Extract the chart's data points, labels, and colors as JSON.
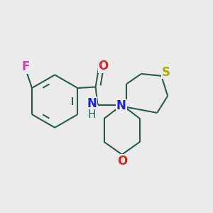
{
  "background_color": "#ebebeb",
  "bond_color": "#2d5a4a",
  "bond_width": 1.5,
  "atoms": {
    "F": {
      "color": "#cc44aa",
      "fontsize": 11
    },
    "O_carbonyl": {
      "color": "#dd2222",
      "fontsize": 11
    },
    "NH": {
      "color": "#2222cc",
      "fontsize": 11
    },
    "H_nh": {
      "color": "#2d6060",
      "fontsize": 10
    },
    "N": {
      "color": "#2222cc",
      "fontsize": 11
    },
    "S": {
      "color": "#aaaa00",
      "fontsize": 11
    },
    "O": {
      "color": "#dd2222",
      "fontsize": 11
    }
  },
  "figsize": [
    3.0,
    3.0
  ],
  "dpi": 100
}
